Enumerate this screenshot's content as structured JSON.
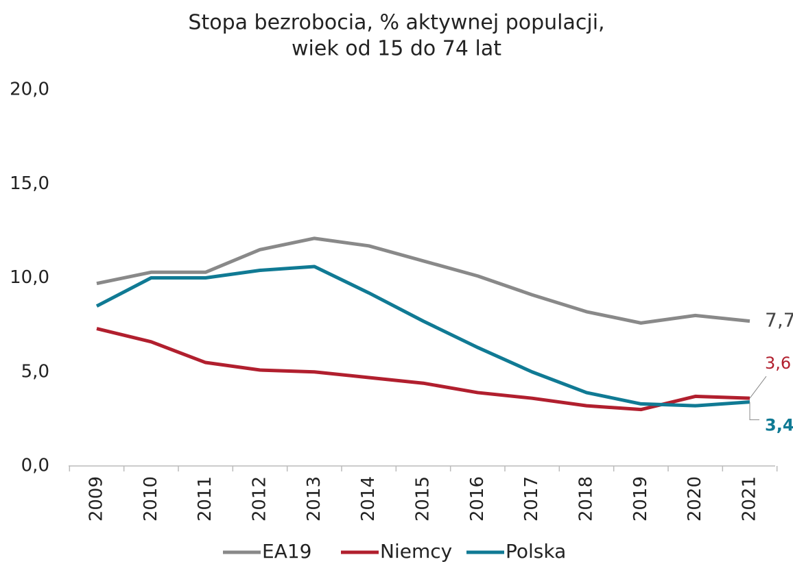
{
  "chart_data": {
    "type": "line",
    "title": [
      "Stopa bezrobocia, % aktywnej populacji,",
      "wiek od 15 do 74 lat"
    ],
    "categories": [
      "2009",
      "2010",
      "2011",
      "2012",
      "2013",
      "2014",
      "2015",
      "2016",
      "2017",
      "2018",
      "2019",
      "2020",
      "2021"
    ],
    "series": [
      {
        "name": "EA19",
        "color": "#898989",
        "values": [
          9.7,
          10.3,
          10.3,
          11.5,
          12.1,
          11.7,
          10.9,
          10.1,
          9.1,
          8.2,
          7.6,
          8.0,
          7.7
        ],
        "value_labels": [
          null,
          null,
          null,
          null,
          null,
          null,
          null,
          null,
          null,
          null,
          null,
          null,
          "7,7"
        ]
      },
      {
        "name": "Niemcy",
        "color": "#b11f2e",
        "values": [
          7.3,
          6.6,
          5.5,
          5.1,
          5.0,
          4.7,
          4.4,
          3.9,
          3.6,
          3.2,
          3.0,
          3.7,
          3.6
        ],
        "value_labels": [
          null,
          null,
          null,
          null,
          null,
          null,
          null,
          null,
          null,
          null,
          null,
          null,
          "3,6"
        ]
      },
      {
        "name": "Polska",
        "color": "#107a94",
        "values": [
          8.5,
          10.0,
          10.0,
          10.4,
          10.6,
          9.2,
          7.7,
          6.3,
          5.0,
          3.9,
          3.3,
          3.2,
          3.4
        ],
        "value_labels": [
          null,
          null,
          null,
          null,
          null,
          null,
          null,
          null,
          null,
          null,
          null,
          null,
          "3,4"
        ]
      }
    ],
    "ylim": [
      0,
      20
    ],
    "yticks": [
      {
        "value": 0,
        "label": "0,0"
      },
      {
        "value": 5,
        "label": "5,0"
      },
      {
        "value": 10,
        "label": "10,0"
      },
      {
        "value": 15,
        "label": "15,0"
      },
      {
        "value": 20,
        "label": "20,0"
      }
    ],
    "legend": "bottom"
  }
}
